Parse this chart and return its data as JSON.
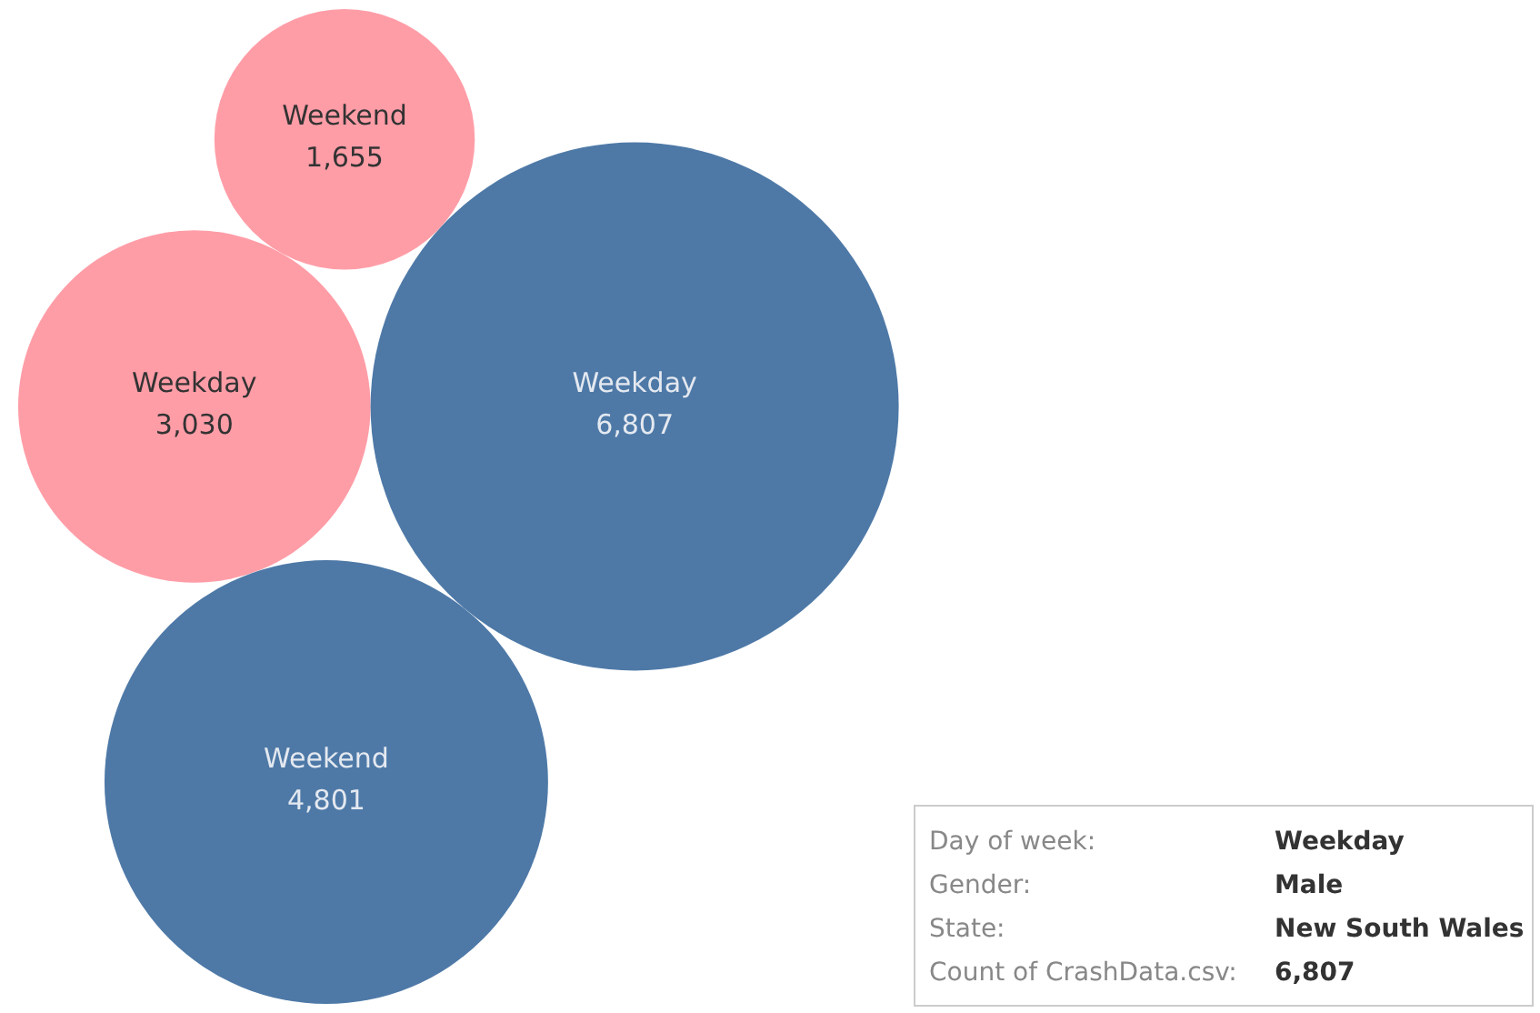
{
  "chart_data": {
    "type": "other",
    "categories": [
      "Weekday",
      "Weekday",
      "Weekend",
      "Weekend"
    ],
    "values": [
      3030,
      6807,
      4801,
      1655
    ],
    "colors": [
      "#ff9da7",
      "#4e79a7",
      "#4e79a7",
      "#ff9da7"
    ],
    "value_labels": [
      "3,030",
      "6,807",
      "4,801",
      "1,655"
    ],
    "annotations": [
      "Day of week:",
      "Weekday",
      "Gender:",
      "Male",
      "State:",
      "New South Wales",
      "Count of CrashData.csv:",
      "6,807"
    ]
  }
}
